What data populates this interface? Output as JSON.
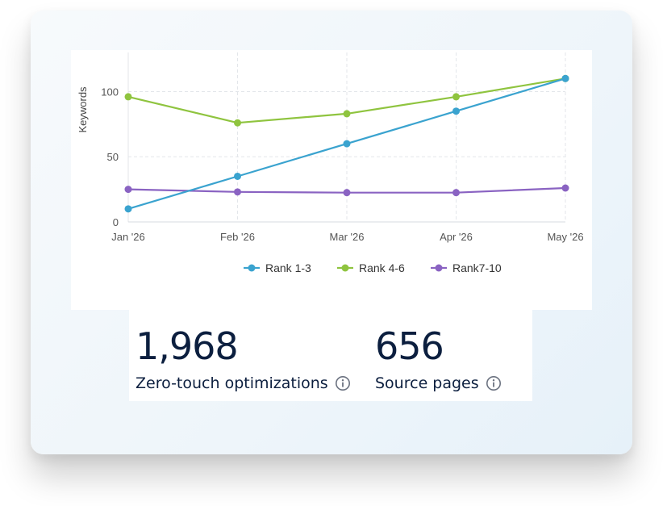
{
  "chart_data": {
    "type": "line",
    "x": [
      "Jan '26",
      "Feb '26",
      "Mar '26",
      "Apr '26",
      "May '26"
    ],
    "ylabel": "Keywords",
    "xlabel": "",
    "ylim": [
      0,
      130
    ],
    "yticks": [
      0,
      50,
      100
    ],
    "grid": true,
    "legend_position": "bottom",
    "series": [
      {
        "name": "Rank 1-3",
        "color": "#3aa3cf",
        "values": [
          10,
          35,
          60,
          85,
          110
        ]
      },
      {
        "name": "Rank 4-6",
        "color": "#8fc43f",
        "values": [
          96,
          76,
          83,
          96,
          110
        ]
      },
      {
        "name": "Rank7-10",
        "color": "#8a63c2",
        "values": [
          25,
          23,
          22.5,
          22.5,
          26
        ]
      }
    ]
  },
  "stats": [
    {
      "value": "1,968",
      "label": "Zero-touch optimizations",
      "icon": "info-icon"
    },
    {
      "value": "656",
      "label": "Source pages",
      "icon": "info-icon"
    }
  ]
}
